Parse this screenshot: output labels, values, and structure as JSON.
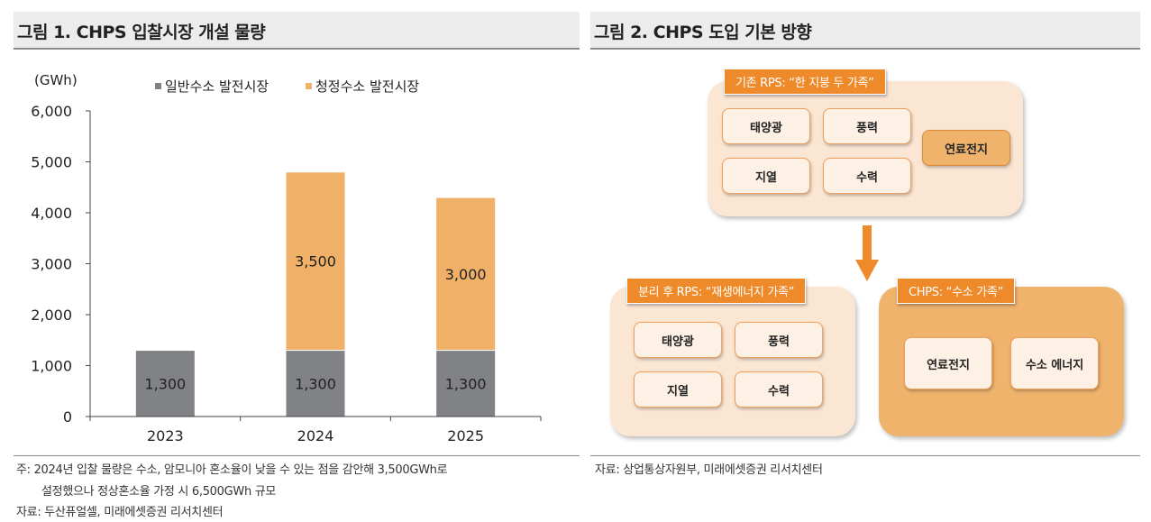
{
  "figure1": {
    "title": "그림 1. CHPS 입찰시장 개설 물량",
    "unit": "(GWh)",
    "notes": [
      "주: 2024년 입찰 물량은 수소, 암모니아 혼소율이 낮을 수 있는 점을 감안해 3,500GWh로",
      "설정했으나 정상혼소율 가정 시 6,500GWh 규모",
      "자료: 두산퓨얼셀, 미래에셋증권 리서치센터"
    ]
  },
  "chart_data": {
    "type": "bar",
    "stacked": true,
    "categories": [
      "2023",
      "2024",
      "2025"
    ],
    "series": [
      {
        "name": "일반수소 발전시장",
        "values": [
          1300,
          1300,
          1300
        ],
        "color": "#808285",
        "labels": [
          "1,300",
          "1,300",
          "1,300"
        ]
      },
      {
        "name": "청정수소 발전시장",
        "values": [
          0,
          3500,
          3000
        ],
        "color": "#f0b068",
        "labels": [
          "",
          "3,500",
          "3,000"
        ]
      }
    ],
    "ylim": [
      0,
      6000
    ],
    "yticks": [
      0,
      1000,
      2000,
      3000,
      4000,
      5000,
      6000
    ],
    "ytick_labels": [
      "0",
      "1,000",
      "2,000",
      "3,000",
      "4,000",
      "5,000",
      "6,000"
    ],
    "legend_placement": "top",
    "grid": false
  },
  "figure2": {
    "title": "그림 2. CHPS 도입 기본 방향",
    "groups": {
      "existing": {
        "label": "기존 RPS: “한 지붕 두 가족”",
        "nodes": [
          "태양광",
          "풍력",
          "지열",
          "수력",
          "연료전지"
        ]
      },
      "after_split": {
        "label": "분리 후  RPS: “재생에너지 가족”",
        "nodes": [
          "태양광",
          "풍력",
          "지열",
          "수력"
        ]
      },
      "chps": {
        "label": "CHPS: “수소 가족”",
        "nodes": [
          "연료전지",
          "수소 에너지"
        ]
      }
    },
    "source": "자료: 상업통상자원부, 미래에셋증권 리서치센터"
  },
  "colors": {
    "accent": "#ef8a2a",
    "light": "#fbe5d3",
    "dark": "#efb36c",
    "gray": "#808285"
  }
}
